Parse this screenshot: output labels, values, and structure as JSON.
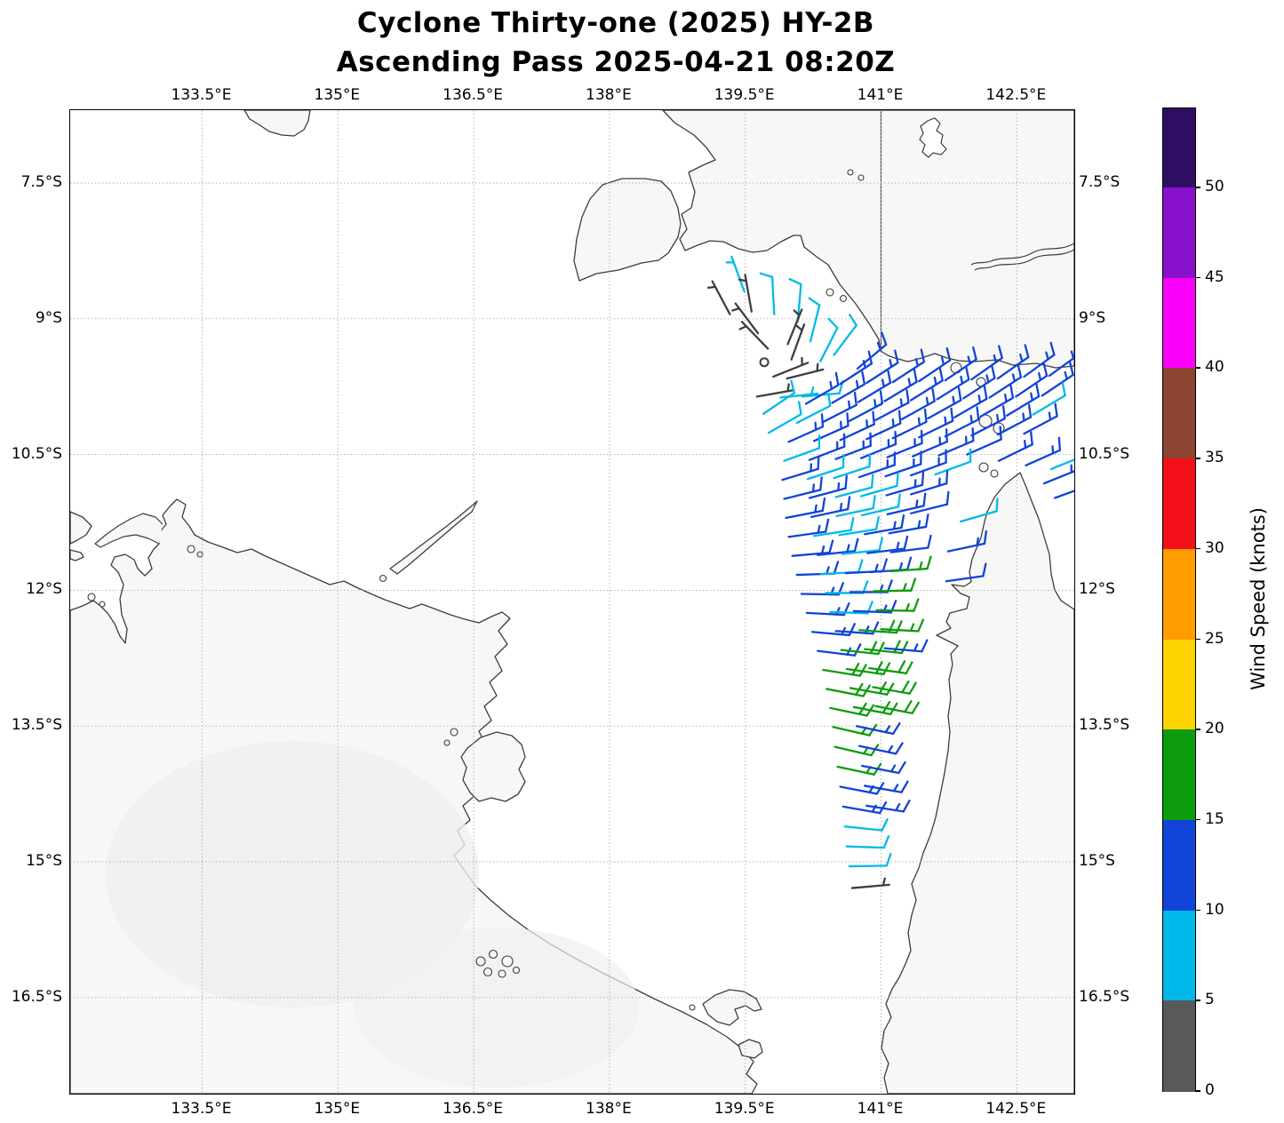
{
  "title": {
    "line1": "Cyclone Thirty-one (2025) HY-2B",
    "line2": "Ascending Pass 2025-04-21 08:20Z"
  },
  "map": {
    "projection": "PlateCarree",
    "extent": {
      "lon_min": 132.04,
      "lon_max": 143.13,
      "lat_north": 6.7,
      "lat_south": 17.56
    },
    "lon_ticks": [
      {
        "value": 133.5,
        "label": "133.5°E"
      },
      {
        "value": 135.0,
        "label": "135°E"
      },
      {
        "value": 136.5,
        "label": "136.5°E"
      },
      {
        "value": 138.0,
        "label": "138°E"
      },
      {
        "value": 139.5,
        "label": "139.5°E"
      },
      {
        "value": 141.0,
        "label": "141°E"
      },
      {
        "value": 142.5,
        "label": "142.5°E"
      }
    ],
    "lat_ticks": [
      {
        "value": 7.5,
        "label": "7.5°S"
      },
      {
        "value": 9.0,
        "label": "9°S"
      },
      {
        "value": 10.5,
        "label": "10.5°S"
      },
      {
        "value": 12.0,
        "label": "12°S"
      },
      {
        "value": 13.5,
        "label": "13.5°S"
      },
      {
        "value": 15.0,
        "label": "15°S"
      },
      {
        "value": 16.5,
        "label": "16.5°S"
      }
    ],
    "border_meridian": 141,
    "colors": {
      "coast": "#3c3c3c",
      "land": "#f7f7f6",
      "land_patch": "#efefef",
      "grid": "#a8a8a8",
      "border_line": "#4a4a4a",
      "sea": "#ffffff"
    }
  },
  "colorbar": {
    "label": "Wind Speed (knots)",
    "ticks": [
      0,
      5,
      10,
      15,
      20,
      25,
      30,
      35,
      40,
      45,
      50
    ],
    "segments_top_to_bottom": [
      {
        "range": "50+",
        "color": "#2e0e63"
      },
      {
        "range": "45-50",
        "color": "#8812cc"
      },
      {
        "range": "40-45",
        "color": "#fb00fb"
      },
      {
        "range": "35-40",
        "color": "#8b4530"
      },
      {
        "range": "30-35",
        "color": "#f31018"
      },
      {
        "range": "25-30",
        "color": "#ff9c00"
      },
      {
        "range": "20-25",
        "color": "#ffd300"
      },
      {
        "range": "15-20",
        "color": "#0d9c0d"
      },
      {
        "range": "10-15",
        "color": "#1144d8"
      },
      {
        "range": "5-10",
        "color": "#00b9ea"
      },
      {
        "range": "0-5",
        "color": "#595959"
      }
    ]
  },
  "chart_data": {
    "type": "wind_barb_map",
    "units": "knots",
    "speed_colors": {
      "g": "#3f3f3f",
      "c": "#00b9ea",
      "b": "#1144d8",
      "n": "#0d9c0d"
    },
    "speed_color_meaning": {
      "g": "0-5 kt",
      "c": "5-10 kt",
      "b": "10-15 kt",
      "n": "15-20 kt"
    },
    "calm": [
      [
        139.71,
        9.48
      ]
    ],
    "barbs": [
      [
        139.49,
        8.7,
        340,
        5,
        "c"
      ],
      [
        139.33,
        8.95,
        332,
        5,
        "g"
      ],
      [
        139.57,
        8.92,
        350,
        5,
        "g"
      ],
      [
        139.82,
        8.95,
        357,
        10,
        "c"
      ],
      [
        140.08,
        9.03,
        5,
        10,
        "c"
      ],
      [
        139.64,
        9.16,
        323,
        5,
        "g"
      ],
      [
        139.75,
        9.33,
        316,
        5,
        "g"
      ],
      [
        139.97,
        9.28,
        22,
        5,
        "g"
      ],
      [
        140.01,
        9.45,
        20,
        5,
        "g"
      ],
      [
        140.22,
        9.25,
        14,
        10,
        "c"
      ],
      [
        140.33,
        9.47,
        27,
        10,
        "c"
      ],
      [
        140.48,
        9.4,
        37,
        10,
        "c"
      ],
      [
        140.74,
        9.55,
        50,
        15,
        "b"
      ],
      [
        139.81,
        9.64,
        68,
        5,
        "g"
      ],
      [
        139.96,
        9.66,
        76,
        5,
        "g"
      ],
      [
        139.63,
        9.86,
        80,
        5,
        "g"
      ],
      [
        139.89,
        9.87,
        84,
        5,
        "c"
      ],
      [
        140.13,
        9.86,
        85,
        10,
        "c"
      ],
      [
        139.7,
        10.05,
        56,
        10,
        "c"
      ],
      [
        139.76,
        10.26,
        60,
        10,
        "c"
      ],
      [
        140.55,
        9.72,
        57,
        15,
        "b"
      ],
      [
        140.84,
        9.71,
        57,
        15,
        "b"
      ],
      [
        141.13,
        9.7,
        57,
        15,
        "b"
      ],
      [
        141.42,
        9.69,
        56,
        15,
        "b"
      ],
      [
        141.71,
        9.68,
        56,
        15,
        "b"
      ],
      [
        142.0,
        9.67,
        55,
        15,
        "b"
      ],
      [
        142.29,
        9.66,
        55,
        15,
        "b"
      ],
      [
        142.58,
        9.64,
        54,
        15,
        "b"
      ],
      [
        142.86,
        9.63,
        54,
        15,
        "b"
      ],
      [
        140.17,
        9.94,
        60,
        15,
        "b"
      ],
      [
        140.46,
        9.93,
        60,
        15,
        "b"
      ],
      [
        140.75,
        9.92,
        59,
        15,
        "b"
      ],
      [
        141.04,
        9.91,
        59,
        15,
        "b"
      ],
      [
        141.33,
        9.9,
        58,
        15,
        "b"
      ],
      [
        141.62,
        9.89,
        58,
        15,
        "b"
      ],
      [
        141.91,
        9.88,
        57,
        15,
        "b"
      ],
      [
        142.2,
        9.87,
        57,
        15,
        "b"
      ],
      [
        142.49,
        9.86,
        56,
        15,
        "b"
      ],
      [
        142.78,
        9.85,
        56,
        15,
        "b"
      ],
      [
        140.07,
        10.15,
        63,
        10,
        "c"
      ],
      [
        140.36,
        10.14,
        63,
        15,
        "b"
      ],
      [
        140.65,
        10.13,
        62,
        15,
        "b"
      ],
      [
        140.94,
        10.12,
        62,
        15,
        "b"
      ],
      [
        141.23,
        10.11,
        61,
        15,
        "b"
      ],
      [
        141.52,
        10.1,
        61,
        15,
        "b"
      ],
      [
        141.81,
        10.09,
        60,
        15,
        "b"
      ],
      [
        142.1,
        10.08,
        60,
        15,
        "b"
      ],
      [
        142.39,
        10.07,
        59,
        15,
        "b"
      ],
      [
        142.68,
        10.06,
        59,
        10,
        "c"
      ],
      [
        139.98,
        10.36,
        66,
        15,
        "b"
      ],
      [
        140.26,
        10.35,
        66,
        15,
        "b"
      ],
      [
        140.55,
        10.34,
        65,
        15,
        "b"
      ],
      [
        140.84,
        10.33,
        65,
        15,
        "b"
      ],
      [
        141.13,
        10.32,
        64,
        15,
        "b"
      ],
      [
        141.42,
        10.31,
        64,
        15,
        "b"
      ],
      [
        141.71,
        10.3,
        63,
        15,
        "b"
      ],
      [
        142.0,
        10.29,
        63,
        15,
        "b"
      ],
      [
        142.29,
        10.28,
        62,
        15,
        "b"
      ],
      [
        142.58,
        10.27,
        62,
        15,
        "b"
      ],
      [
        139.93,
        10.57,
        70,
        10,
        "c"
      ],
      [
        140.21,
        10.56,
        69,
        15,
        "b"
      ],
      [
        140.5,
        10.55,
        69,
        15,
        "b"
      ],
      [
        140.78,
        10.54,
        68,
        15,
        "b"
      ],
      [
        141.07,
        10.53,
        68,
        15,
        "b"
      ],
      [
        141.35,
        10.52,
        67,
        15,
        "b"
      ],
      [
        141.64,
        10.51,
        67,
        15,
        "b"
      ],
      [
        141.95,
        10.5,
        66,
        10,
        "b"
      ],
      [
        142.3,
        10.57,
        64,
        15,
        "b"
      ],
      [
        142.6,
        10.62,
        66,
        15,
        "b"
      ],
      [
        142.88,
        10.66,
        68,
        10,
        "c"
      ],
      [
        142.8,
        10.82,
        68,
        15,
        "b"
      ],
      [
        142.92,
        10.98,
        70,
        15,
        "b"
      ],
      [
        139.91,
        10.78,
        73,
        15,
        "b"
      ],
      [
        140.19,
        10.77,
        72,
        10,
        "c"
      ],
      [
        140.48,
        10.76,
        72,
        10,
        "c"
      ],
      [
        140.76,
        10.75,
        71,
        15,
        "b"
      ],
      [
        141.05,
        10.74,
        71,
        15,
        "b"
      ],
      [
        141.33,
        10.73,
        70,
        15,
        "b"
      ],
      [
        141.6,
        10.72,
        70,
        10,
        "c"
      ],
      [
        139.93,
        10.99,
        76,
        15,
        "b"
      ],
      [
        140.21,
        10.98,
        75,
        15,
        "b"
      ],
      [
        140.5,
        10.97,
        75,
        10,
        "c"
      ],
      [
        140.78,
        10.96,
        74,
        10,
        "c"
      ],
      [
        141.06,
        10.95,
        74,
        15,
        "b"
      ],
      [
        141.33,
        10.94,
        73,
        15,
        "b"
      ],
      [
        139.95,
        11.2,
        79,
        15,
        "b"
      ],
      [
        140.23,
        11.19,
        78,
        15,
        "b"
      ],
      [
        140.51,
        11.18,
        78,
        10,
        "c"
      ],
      [
        140.79,
        11.17,
        77,
        10,
        "c"
      ],
      [
        141.07,
        11.16,
        77,
        15,
        "b"
      ],
      [
        141.33,
        11.15,
        76,
        10,
        "b"
      ],
      [
        139.98,
        11.41,
        82,
        15,
        "b"
      ],
      [
        140.26,
        11.4,
        81,
        10,
        "c"
      ],
      [
        140.54,
        11.39,
        81,
        10,
        "c"
      ],
      [
        140.82,
        11.38,
        80,
        15,
        "b"
      ],
      [
        141.09,
        11.37,
        80,
        15,
        "b"
      ],
      [
        140.02,
        11.62,
        85,
        15,
        "b"
      ],
      [
        140.3,
        11.61,
        84,
        15,
        "b"
      ],
      [
        140.57,
        11.6,
        84,
        10,
        "c"
      ],
      [
        140.85,
        11.59,
        83,
        15,
        "b"
      ],
      [
        141.11,
        11.58,
        83,
        10,
        "b"
      ],
      [
        141.74,
        11.57,
        78,
        15,
        "b"
      ],
      [
        141.88,
        11.24,
        74,
        10,
        "c"
      ],
      [
        140.07,
        11.83,
        88,
        15,
        "b"
      ],
      [
        140.34,
        11.82,
        87,
        10,
        "c"
      ],
      [
        140.61,
        11.81,
        87,
        15,
        "b"
      ],
      [
        140.88,
        11.8,
        86,
        15,
        "b"
      ],
      [
        141.1,
        11.79,
        86,
        15,
        "n"
      ],
      [
        140.12,
        12.04,
        91,
        15,
        "b"
      ],
      [
        140.39,
        12.03,
        90,
        10,
        "c"
      ],
      [
        140.66,
        12.02,
        90,
        15,
        "b"
      ],
      [
        140.92,
        12.01,
        89,
        15,
        "n"
      ],
      [
        141.72,
        11.9,
        82,
        10,
        "b"
      ],
      [
        140.18,
        12.25,
        93,
        15,
        "b"
      ],
      [
        140.44,
        12.24,
        92,
        10,
        "c"
      ],
      [
        140.7,
        12.23,
        92,
        15,
        "b"
      ],
      [
        140.95,
        12.22,
        91,
        15,
        "n"
      ],
      [
        140.24,
        12.46,
        95,
        15,
        "b"
      ],
      [
        140.5,
        12.45,
        94,
        15,
        "b"
      ],
      [
        140.76,
        12.44,
        94,
        20,
        "n"
      ],
      [
        141.0,
        12.43,
        93,
        15,
        "n"
      ],
      [
        140.3,
        12.67,
        97,
        15,
        "b"
      ],
      [
        140.56,
        12.66,
        96,
        20,
        "n"
      ],
      [
        140.82,
        12.65,
        96,
        20,
        "n"
      ],
      [
        141.04,
        12.64,
        95,
        15,
        "b"
      ],
      [
        140.36,
        12.88,
        99,
        20,
        "n"
      ],
      [
        140.62,
        12.87,
        98,
        20,
        "n"
      ],
      [
        140.87,
        12.86,
        98,
        20,
        "n"
      ],
      [
        140.4,
        13.09,
        101,
        20,
        "n"
      ],
      [
        140.66,
        13.08,
        100,
        20,
        "n"
      ],
      [
        140.91,
        13.07,
        100,
        20,
        "n"
      ],
      [
        140.44,
        13.3,
        102,
        20,
        "n"
      ],
      [
        140.7,
        13.29,
        101,
        20,
        "n"
      ],
      [
        140.94,
        13.28,
        101,
        20,
        "n"
      ],
      [
        140.47,
        13.51,
        103,
        15,
        "n"
      ],
      [
        140.73,
        13.5,
        102,
        15,
        "b"
      ],
      [
        140.49,
        13.73,
        103,
        15,
        "n"
      ],
      [
        140.76,
        13.72,
        102,
        15,
        "b"
      ],
      [
        140.52,
        13.95,
        102,
        15,
        "n"
      ],
      [
        140.79,
        13.94,
        101,
        15,
        "b"
      ],
      [
        140.55,
        14.17,
        101,
        15,
        "b"
      ],
      [
        140.82,
        14.16,
        100,
        15,
        "b"
      ],
      [
        140.58,
        14.39,
        100,
        15,
        "b"
      ],
      [
        140.84,
        14.38,
        99,
        15,
        "b"
      ],
      [
        140.6,
        14.61,
        96,
        10,
        "c"
      ],
      [
        140.62,
        14.83,
        92,
        10,
        "c"
      ],
      [
        140.65,
        15.05,
        89,
        10,
        "c"
      ],
      [
        140.68,
        15.29,
        85,
        5,
        "g"
      ]
    ]
  }
}
